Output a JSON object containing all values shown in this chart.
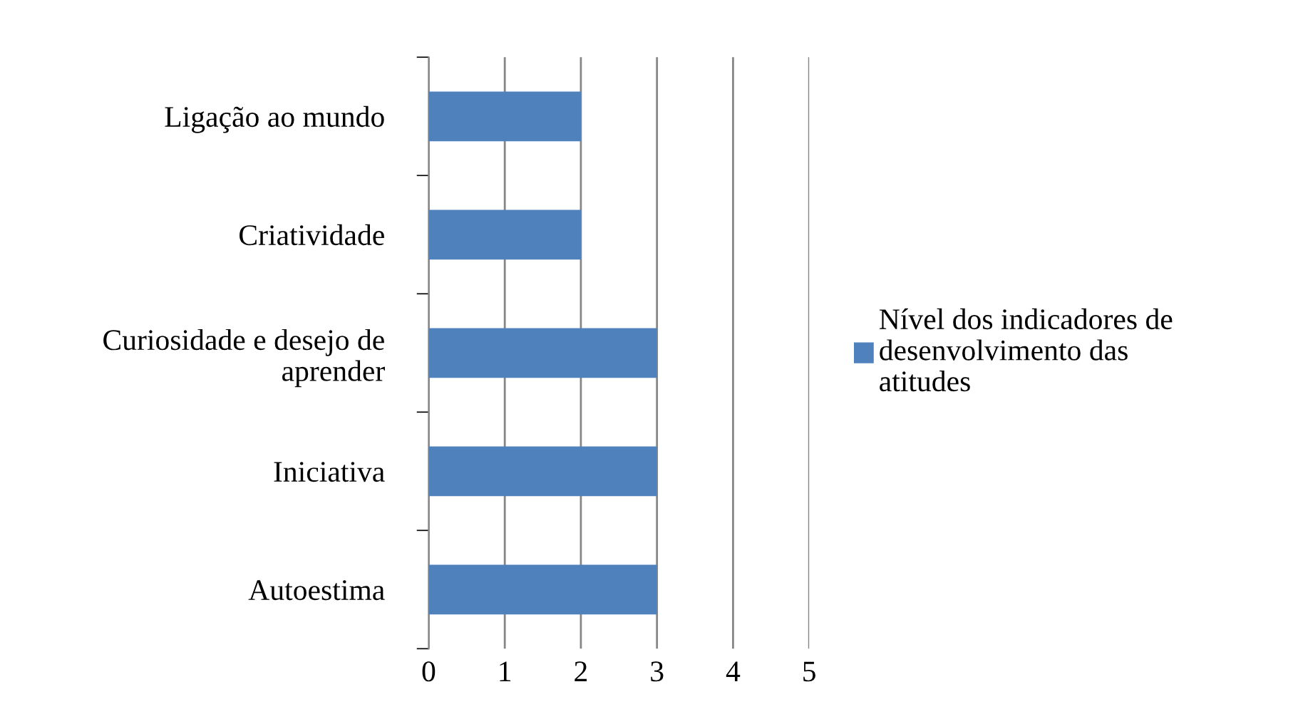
{
  "chart_data": {
    "type": "bar",
    "orientation": "horizontal",
    "categories": [
      "Ligação ao mundo",
      "Criatividade",
      "Curiosidade e desejo de aprender",
      "Iniciativa",
      "Autoestima"
    ],
    "series": [
      {
        "name": "Nível dos indicadores de desenvolvimento das atitudes",
        "color": "#4f81bd",
        "values": [
          2,
          2,
          3,
          3,
          3
        ]
      }
    ],
    "xlim": [
      0,
      5
    ],
    "xticks": [
      0,
      1,
      2,
      3,
      4,
      5
    ],
    "grid": "x",
    "legend": "right"
  }
}
